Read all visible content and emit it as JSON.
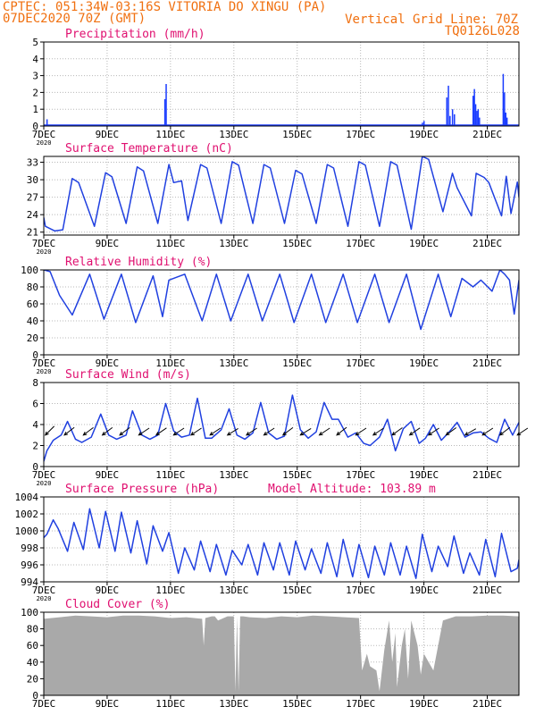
{
  "header": {
    "line1": "CPTEC:  051:34W-03:16S  VITORIA DO XINGU (PA)",
    "line2": "07DEC2020 70Z (GMT)",
    "grid_note": "Vertical Grid Line: 70Z",
    "code": "TQ0126L028"
  },
  "colors": {
    "header": "#f07010",
    "title": "#e01070",
    "series": "#2040e0",
    "bars": "#1a3cff",
    "cloud": "#a9a9a9",
    "grid": "#b8b8b8",
    "axis": "#000000",
    "wind_arrow": "#000000"
  },
  "chart_data": [
    {
      "type": "bar",
      "title": "Precipitation (mm/h)",
      "ylim": [
        0,
        5
      ],
      "yticks": [
        0,
        1,
        2,
        3,
        4,
        5
      ],
      "xlim": [
        0,
        15
      ],
      "xticks": [
        0,
        2,
        4,
        6,
        8,
        10,
        12,
        14
      ],
      "xtick_labels": [
        "7DEC",
        "9DEC",
        "11DEC",
        "13DEC",
        "15DEC",
        "17DEC",
        "19DEC",
        "21DEC"
      ],
      "x_start_label": "2020",
      "bars": [
        {
          "x": 0.1,
          "y": 0.4
        },
        {
          "x": 3.82,
          "y": 1.6
        },
        {
          "x": 3.86,
          "y": 2.5
        },
        {
          "x": 11.95,
          "y": 0.2
        },
        {
          "x": 12.0,
          "y": 0.3
        },
        {
          "x": 12.72,
          "y": 1.7
        },
        {
          "x": 12.77,
          "y": 2.4
        },
        {
          "x": 12.82,
          "y": 0.6
        },
        {
          "x": 12.9,
          "y": 1.0
        },
        {
          "x": 12.96,
          "y": 0.7
        },
        {
          "x": 13.55,
          "y": 1.8
        },
        {
          "x": 13.59,
          "y": 2.2
        },
        {
          "x": 13.63,
          "y": 1.3
        },
        {
          "x": 13.67,
          "y": 0.9
        },
        {
          "x": 13.71,
          "y": 1.0
        },
        {
          "x": 13.75,
          "y": 0.5
        },
        {
          "x": 14.5,
          "y": 3.1
        },
        {
          "x": 14.54,
          "y": 2.0
        },
        {
          "x": 14.58,
          "y": 0.8
        },
        {
          "x": 14.62,
          "y": 0.5
        }
      ]
    },
    {
      "type": "line",
      "title": "Surface Temperature (nC)",
      "ylim": [
        20.5,
        34
      ],
      "yticks": [
        21,
        24,
        27,
        30,
        33
      ],
      "xlim": [
        0,
        15
      ],
      "xticks": [
        0,
        2,
        4,
        6,
        8,
        10,
        12,
        14
      ],
      "xtick_labels": [
        "7DEC",
        "9DEC",
        "11DEC",
        "13DEC",
        "15DEC",
        "17DEC",
        "19DEC",
        "21DEC"
      ],
      "x_start_label": "2020",
      "series": [
        {
          "name": "Surface Temperature",
          "base": 0,
          "x": [
            0,
            0.05,
            0.35,
            0.6,
            0.9,
            1.1,
            1.6,
            1.95,
            2.15,
            2.6,
            2.95,
            3.15,
            3.6,
            3.95,
            4.1,
            4.35,
            4.55,
            4.95,
            5.15,
            5.6,
            5.95,
            6.15,
            6.6,
            6.95,
            7.15,
            7.6,
            7.95,
            8.15,
            8.6,
            8.95,
            9.15,
            9.6,
            9.95,
            10.15,
            10.6,
            10.95,
            11.15,
            11.6,
            11.95,
            12.15,
            12.6,
            12.9,
            13.05,
            13.5,
            13.65,
            13.9,
            14.05,
            14.45,
            14.6,
            14.75,
            14.95,
            15
          ],
          "y": [
            23.5,
            22,
            21.2,
            21.4,
            30.2,
            29.5,
            22,
            31.2,
            30.5,
            22.5,
            32.2,
            31.5,
            22.5,
            32.6,
            29.5,
            29.8,
            23,
            32.6,
            32,
            22.5,
            33.1,
            32.5,
            22.5,
            32.6,
            32,
            22.5,
            31.6,
            31,
            22.5,
            32.6,
            32,
            22,
            33.1,
            32.5,
            22,
            33.1,
            32.5,
            21.5,
            34,
            33.5,
            24.5,
            31.1,
            28.6,
            23.8,
            31.1,
            30.4,
            29.5,
            23.8,
            30.6,
            24.2,
            29.6,
            27
          ]
        }
      ]
    },
    {
      "type": "line",
      "title": "Relative Humidity (%)",
      "ylim": [
        0,
        100
      ],
      "yticks": [
        0,
        20,
        40,
        60,
        80,
        100
      ],
      "xlim": [
        0,
        15
      ],
      "xticks": [
        0,
        2,
        4,
        6,
        8,
        10,
        12,
        14
      ],
      "xtick_labels": [
        "7DEC",
        "9DEC",
        "11DEC",
        "13DEC",
        "15DEC",
        "17DEC",
        "19DEC",
        "21DEC"
      ],
      "x_start_label": "2020",
      "series": [
        {
          "name": "Relative Humidity",
          "base": 0,
          "x": [
            0,
            0.2,
            0.5,
            0.9,
            1.45,
            1.9,
            2.45,
            2.9,
            3.45,
            3.75,
            3.95,
            4.45,
            5,
            5.45,
            5.9,
            6.45,
            6.9,
            7.45,
            7.9,
            8.45,
            8.9,
            9.45,
            9.9,
            10.45,
            10.9,
            11.45,
            11.9,
            12.45,
            12.85,
            13.2,
            13.55,
            13.8,
            14.15,
            14.4,
            14.55,
            14.7,
            14.85,
            15
          ],
          "y": [
            100,
            98,
            70,
            47,
            95,
            42,
            95,
            38,
            93,
            45,
            88,
            95,
            40,
            95,
            40,
            95,
            40,
            95,
            38,
            95,
            38,
            95,
            38,
            95,
            38,
            95,
            30,
            95,
            45,
            90,
            80,
            88,
            75,
            100,
            95,
            88,
            48,
            88
          ]
        }
      ]
    },
    {
      "type": "line",
      "title": "Surface Wind (m/s)",
      "ylim": [
        0,
        8
      ],
      "yticks": [
        0,
        2,
        4,
        6,
        8
      ],
      "xlim": [
        0,
        15
      ],
      "xticks": [
        0,
        2,
        4,
        6,
        8,
        10,
        12,
        14
      ],
      "xtick_labels": [
        "7DEC",
        "9DEC",
        "11DEC",
        "13DEC",
        "15DEC",
        "17DEC",
        "19DEC",
        "21DEC"
      ],
      "x_start_label": "2020",
      "series": [
        {
          "name": "Wind speed",
          "base": 0,
          "x": [
            0,
            0.1,
            0.3,
            0.55,
            0.75,
            1.0,
            1.2,
            1.5,
            1.8,
            2.05,
            2.3,
            2.6,
            2.8,
            3.1,
            3.35,
            3.6,
            3.85,
            4.1,
            4.35,
            4.6,
            4.85,
            5.1,
            5.3,
            5.6,
            5.85,
            6.1,
            6.35,
            6.6,
            6.85,
            7.1,
            7.35,
            7.6,
            7.85,
            8.1,
            8.35,
            8.6,
            8.85,
            9.1,
            9.3,
            9.6,
            9.85,
            10.1,
            10.3,
            10.6,
            10.85,
            11.1,
            11.35,
            11.6,
            11.85,
            12.05,
            12.3,
            12.55,
            12.8,
            13.05,
            13.3,
            13.55,
            13.8,
            14.05,
            14.3,
            14.55,
            14.8,
            15
          ],
          "y": [
            0.5,
            1.5,
            2.5,
            3.0,
            4.3,
            2.6,
            2.3,
            2.8,
            5.0,
            3.0,
            2.6,
            3.0,
            5.3,
            3.0,
            2.6,
            3.0,
            6.0,
            3.4,
            2.8,
            3.0,
            6.5,
            2.7,
            2.7,
            3.5,
            5.5,
            3.0,
            2.6,
            3.2,
            6.1,
            3.2,
            2.6,
            2.9,
            6.8,
            3.5,
            2.7,
            3.3,
            6.1,
            4.5,
            4.5,
            2.8,
            3.2,
            2.2,
            2.0,
            2.8,
            4.5,
            1.5,
            3.6,
            4.3,
            2.2,
            2.7,
            4.0,
            2.5,
            3.3,
            4.2,
            2.8,
            3.2,
            3.3,
            2.7,
            2.3,
            4.5,
            3.0,
            4.2
          ]
        }
      ],
      "wind_vectors": [
        {
          "x": 0.05,
          "u": 1.0,
          "v": 1.0
        },
        {
          "x": 0.65,
          "u": 1.3,
          "v": 1.0
        },
        {
          "x": 1.25,
          "u": 1.2,
          "v": 0.9
        },
        {
          "x": 1.85,
          "u": 1.2,
          "v": 0.9
        },
        {
          "x": 2.4,
          "u": 1.2,
          "v": 0.9
        },
        {
          "x": 3.0,
          "u": 1.2,
          "v": 0.8
        },
        {
          "x": 3.55,
          "u": 1.3,
          "v": 0.9
        },
        {
          "x": 4.1,
          "u": 1.2,
          "v": 0.8
        },
        {
          "x": 4.65,
          "u": 1.2,
          "v": 0.8
        },
        {
          "x": 5.25,
          "u": 1.2,
          "v": 0.8
        },
        {
          "x": 5.8,
          "u": 1.3,
          "v": 0.8
        },
        {
          "x": 6.4,
          "u": 1.2,
          "v": 0.8
        },
        {
          "x": 6.95,
          "u": 1.2,
          "v": 0.8
        },
        {
          "x": 7.55,
          "u": 1.2,
          "v": 0.9
        },
        {
          "x": 8.1,
          "u": 1.3,
          "v": 0.8
        },
        {
          "x": 8.7,
          "u": 1.2,
          "v": 0.8
        },
        {
          "x": 9.25,
          "u": 1.4,
          "v": 1.1
        },
        {
          "x": 9.85,
          "u": 1.2,
          "v": 0.8
        },
        {
          "x": 10.4,
          "u": 1.2,
          "v": 0.8
        },
        {
          "x": 11.0,
          "u": 1.1,
          "v": 0.8
        },
        {
          "x": 11.55,
          "u": 1.3,
          "v": 0.9
        },
        {
          "x": 12.15,
          "u": 1.2,
          "v": 0.8
        },
        {
          "x": 12.7,
          "u": 1.1,
          "v": 0.8
        },
        {
          "x": 13.3,
          "u": 1.2,
          "v": 0.7
        },
        {
          "x": 13.85,
          "u": 1.2,
          "v": 0.8
        },
        {
          "x": 14.4,
          "u": 1.3,
          "v": 1.0
        },
        {
          "x": 14.95,
          "u": 1.2,
          "v": 0.8
        }
      ]
    },
    {
      "type": "line",
      "title": "Surface Pressure (hPa)",
      "subtitle": "Model Altitude: 103.89 m",
      "ylim": [
        994,
        1004
      ],
      "yticks": [
        994,
        996,
        998,
        1000,
        1002,
        1004
      ],
      "xlim": [
        0,
        15
      ],
      "xticks": [
        0,
        2,
        4,
        6,
        8,
        10,
        12,
        14
      ],
      "xtick_labels": [
        "7DEC",
        "9DEC",
        "11DEC",
        "13DEC",
        "15DEC",
        "17DEC",
        "19DEC",
        "21DEC"
      ],
      "x_start_label": "2020",
      "series": [
        {
          "name": "Surface Pressure",
          "base": 994,
          "x": [
            0,
            0.1,
            0.3,
            0.45,
            0.75,
            0.95,
            1.25,
            1.45,
            1.75,
            1.95,
            2.25,
            2.45,
            2.75,
            2.95,
            3.25,
            3.45,
            3.75,
            3.95,
            4.25,
            4.45,
            4.75,
            4.95,
            5.25,
            5.45,
            5.75,
            5.95,
            6.25,
            6.45,
            6.75,
            6.95,
            7.25,
            7.45,
            7.75,
            7.95,
            8.25,
            8.45,
            8.75,
            8.95,
            9.25,
            9.45,
            9.75,
            9.95,
            10.25,
            10.45,
            10.75,
            10.95,
            11.25,
            11.45,
            11.75,
            11.95,
            12.25,
            12.45,
            12.75,
            12.95,
            13.25,
            13.45,
            13.75,
            13.95,
            14.25,
            14.45,
            14.75,
            14.95,
            15
          ],
          "y": [
            999.2,
            999.6,
            1001.3,
            1000.3,
            997.6,
            1001.0,
            997.8,
            1002.6,
            998.0,
            1002.3,
            997.6,
            1002.2,
            997.4,
            1001.2,
            996.1,
            1000.6,
            997.6,
            999.8,
            995.0,
            998.0,
            995.4,
            998.8,
            995.2,
            998.4,
            994.8,
            997.7,
            996.0,
            998.4,
            994.8,
            998.6,
            995.4,
            998.6,
            994.8,
            998.8,
            995.4,
            997.9,
            995.0,
            998.6,
            994.6,
            999.0,
            994.6,
            998.4,
            994.5,
            998.2,
            994.8,
            998.6,
            994.8,
            998.2,
            994.4,
            999.6,
            995.2,
            998.2,
            995.8,
            999.4,
            995.0,
            997.4,
            994.8,
            999.0,
            994.6,
            999.7,
            995.2,
            995.6,
            996.6
          ]
        }
      ]
    },
    {
      "type": "area",
      "title": "Cloud Cover (%)",
      "ylim": [
        0,
        100
      ],
      "yticks": [
        0,
        20,
        40,
        60,
        80,
        100
      ],
      "xlim": [
        0,
        15
      ],
      "xticks": [
        0,
        2,
        4,
        6,
        8,
        10,
        12,
        14
      ],
      "xtick_labels": [
        "7DEC",
        "9DEC",
        "11DEC",
        "13DEC",
        "15DEC",
        "17DEC",
        "19DEC",
        "21DEC"
      ],
      "series": [
        {
          "name": "Cloud Cover",
          "x": [
            0,
            0.5,
            1.0,
            1.5,
            2.0,
            2.5,
            3.0,
            3.5,
            4.0,
            4.5,
            5.0,
            5.05,
            5.1,
            5.3,
            5.4,
            5.5,
            5.8,
            6.0,
            6.05,
            6.1,
            6.15,
            6.2,
            6.3,
            6.5,
            7.0,
            7.5,
            8.0,
            8.5,
            9.0,
            9.5,
            9.95,
            10.05,
            10.2,
            10.3,
            10.5,
            10.6,
            10.75,
            10.9,
            11.0,
            11.1,
            11.15,
            11.3,
            11.4,
            11.5,
            11.6,
            11.8,
            11.9,
            12.0,
            12.3,
            12.6,
            13.0,
            13.5,
            14.0,
            14.5,
            15
          ],
          "y": [
            92,
            94,
            96,
            95,
            94,
            96,
            96,
            95,
            93,
            94,
            92,
            60,
            93,
            95,
            95,
            90,
            95,
            95,
            5,
            95,
            5,
            95,
            95,
            94,
            93,
            95,
            94,
            96,
            95,
            94,
            93,
            30,
            50,
            35,
            30,
            5,
            55,
            90,
            40,
            75,
            10,
            60,
            80,
            20,
            90,
            60,
            25,
            50,
            30,
            90,
            95,
            95,
            96,
            96,
            95
          ]
        }
      ]
    }
  ]
}
